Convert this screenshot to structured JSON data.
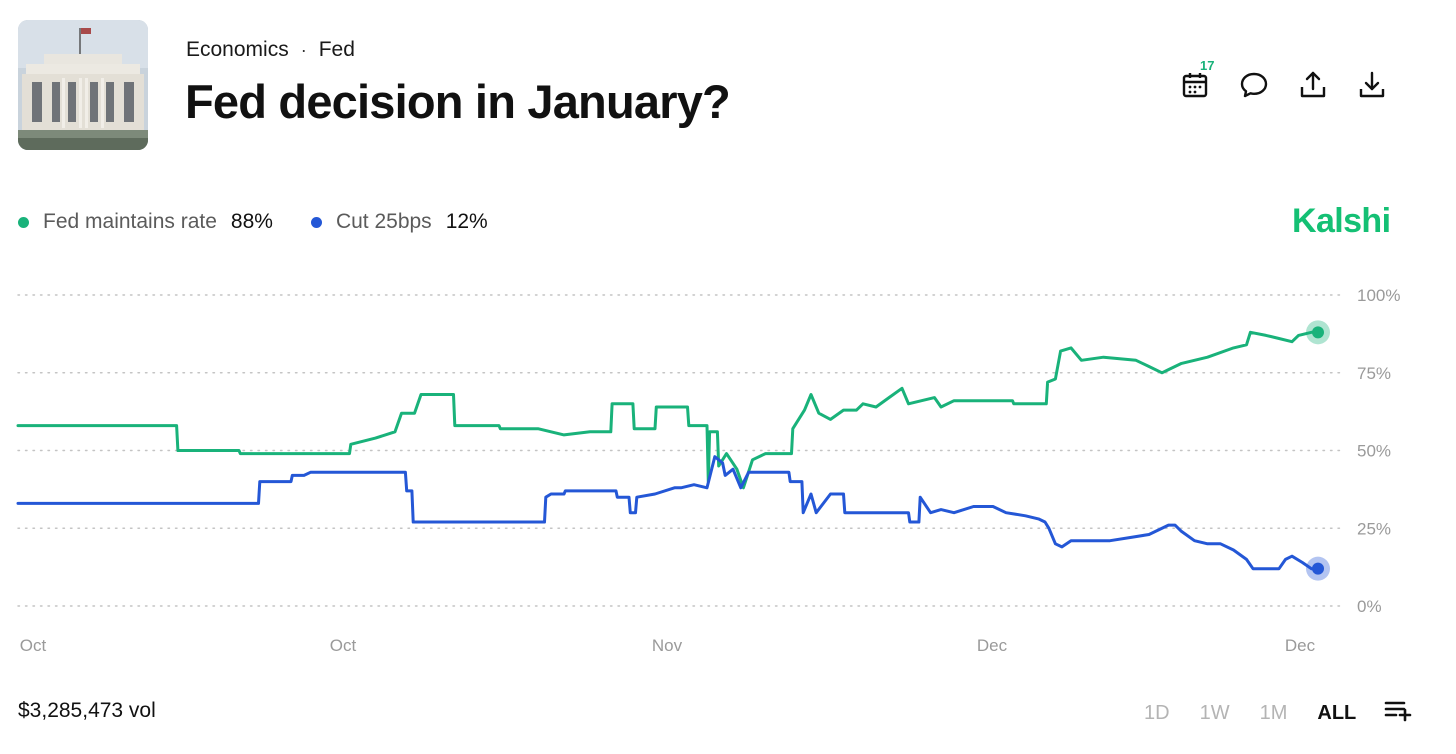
{
  "header": {
    "breadcrumb": [
      "Economics",
      "Fed"
    ],
    "breadcrumb_separator": "·",
    "title": "Fed decision in January?",
    "calendar_badge": "17"
  },
  "legend": [
    {
      "name": "Fed maintains rate",
      "value": "88%",
      "color": "#19b27a"
    },
    {
      "name": "Cut 25bps",
      "value": "12%",
      "color": "#2457d6"
    }
  ],
  "brand": "Kalshi",
  "footer": {
    "volume": "$3,285,473 vol",
    "ranges": [
      "1D",
      "1W",
      "1M",
      "ALL"
    ],
    "active_range": "ALL"
  },
  "icons": [
    "calendar-icon",
    "comment-icon",
    "share-icon",
    "download-icon",
    "add-to-list-icon"
  ],
  "chart_data": {
    "type": "line",
    "x_tick_labels": [
      "Oct",
      "Oct",
      "Nov",
      "Dec",
      "Dec"
    ],
    "y_tick_labels": [
      "100%",
      "75%",
      "50%",
      "25%",
      "0%"
    ],
    "ylim": [
      0,
      100
    ],
    "xlim": [
      0,
      100
    ],
    "grid": true,
    "line_shape": "step",
    "series": [
      {
        "name": "Fed maintains rate",
        "color": "#19b27a",
        "end_value": 88,
        "points": [
          [
            0,
            58
          ],
          [
            12.2,
            58
          ],
          [
            12.3,
            50
          ],
          [
            17,
            50
          ],
          [
            17.1,
            49
          ],
          [
            25.5,
            49
          ],
          [
            25.6,
            52
          ],
          [
            27.5,
            54
          ],
          [
            29,
            56
          ],
          [
            29.5,
            62
          ],
          [
            30.5,
            62
          ],
          [
            31,
            68
          ],
          [
            33.5,
            68
          ],
          [
            33.6,
            58
          ],
          [
            37,
            58
          ],
          [
            37.1,
            57
          ],
          [
            40,
            57
          ],
          [
            42,
            55
          ],
          [
            44,
            56
          ],
          [
            45.6,
            56
          ],
          [
            45.7,
            65
          ],
          [
            47.3,
            65
          ],
          [
            47.4,
            57
          ],
          [
            49,
            57
          ],
          [
            49.1,
            64
          ],
          [
            51.5,
            64
          ],
          [
            51.6,
            58
          ],
          [
            53,
            58
          ],
          [
            53.1,
            40
          ],
          [
            53.2,
            56
          ],
          [
            53.8,
            56
          ],
          [
            53.9,
            45
          ],
          [
            54.5,
            49
          ],
          [
            55.3,
            44
          ],
          [
            55.8,
            38
          ],
          [
            56.5,
            47
          ],
          [
            57.5,
            49
          ],
          [
            59.5,
            49
          ],
          [
            59.6,
            57
          ],
          [
            60.5,
            63
          ],
          [
            61,
            68
          ],
          [
            61.6,
            62
          ],
          [
            62.5,
            60
          ],
          [
            63.5,
            63
          ],
          [
            64.5,
            63
          ],
          [
            65,
            65
          ],
          [
            66,
            64
          ],
          [
            67,
            67
          ],
          [
            68,
            70
          ],
          [
            68.5,
            65
          ],
          [
            69.5,
            66
          ],
          [
            70.5,
            67
          ],
          [
            71,
            64
          ],
          [
            72,
            66
          ],
          [
            74,
            66
          ],
          [
            76.5,
            66
          ],
          [
            76.6,
            65
          ],
          [
            79.1,
            65
          ],
          [
            79.2,
            72
          ],
          [
            79.8,
            73
          ],
          [
            80.2,
            82
          ],
          [
            81,
            83
          ],
          [
            81.8,
            79
          ],
          [
            83.5,
            80
          ],
          [
            86,
            79
          ],
          [
            87,
            77
          ],
          [
            88,
            75
          ],
          [
            88.5,
            76
          ],
          [
            89.5,
            78
          ],
          [
            91.5,
            80
          ],
          [
            93.5,
            83
          ],
          [
            94.5,
            84
          ],
          [
            94.8,
            88
          ],
          [
            96,
            87
          ],
          [
            97,
            86
          ],
          [
            98,
            85
          ],
          [
            98.5,
            87
          ],
          [
            99.5,
            88
          ],
          [
            101,
            88
          ]
        ]
      },
      {
        "name": "Cut 25bps",
        "color": "#2457d6",
        "end_value": 12,
        "points": [
          [
            0,
            33
          ],
          [
            18.5,
            33
          ],
          [
            18.6,
            40
          ],
          [
            21,
            40
          ],
          [
            21.1,
            42
          ],
          [
            22,
            42
          ],
          [
            22.5,
            43
          ],
          [
            29.8,
            43
          ],
          [
            29.9,
            37
          ],
          [
            30.3,
            37
          ],
          [
            30.4,
            27
          ],
          [
            40.5,
            27
          ],
          [
            40.6,
            35
          ],
          [
            41,
            36
          ],
          [
            42,
            36
          ],
          [
            42.1,
            37
          ],
          [
            46,
            37
          ],
          [
            46.1,
            35
          ],
          [
            47,
            35
          ],
          [
            47.1,
            30
          ],
          [
            47.5,
            30
          ],
          [
            47.6,
            35
          ],
          [
            49,
            36
          ],
          [
            50.5,
            38
          ],
          [
            51,
            38
          ],
          [
            52,
            39
          ],
          [
            53,
            38
          ],
          [
            53.6,
            48
          ],
          [
            54.2,
            46
          ],
          [
            54.4,
            42
          ],
          [
            55,
            44
          ],
          [
            55.6,
            38
          ],
          [
            56.2,
            43
          ],
          [
            59.3,
            43
          ],
          [
            59.4,
            40
          ],
          [
            60.3,
            40
          ],
          [
            60.4,
            30
          ],
          [
            61,
            36
          ],
          [
            61.4,
            30
          ],
          [
            62.5,
            36
          ],
          [
            63.5,
            36
          ],
          [
            63.6,
            30
          ],
          [
            68.5,
            30
          ],
          [
            68.6,
            27
          ],
          [
            69.3,
            27
          ],
          [
            69.4,
            35
          ],
          [
            70.2,
            30
          ],
          [
            71,
            31
          ],
          [
            72,
            30
          ],
          [
            73.5,
            32
          ],
          [
            75,
            32
          ],
          [
            76,
            30
          ],
          [
            77.5,
            29
          ],
          [
            78.5,
            28
          ],
          [
            79,
            27
          ],
          [
            79.3,
            25
          ],
          [
            79.8,
            20
          ],
          [
            80.3,
            19
          ],
          [
            81,
            21
          ],
          [
            82.5,
            21
          ],
          [
            84,
            21
          ],
          [
            85.5,
            22
          ],
          [
            87,
            23
          ],
          [
            88.5,
            26
          ],
          [
            89,
            26
          ],
          [
            89.5,
            24
          ],
          [
            90.5,
            21
          ],
          [
            91.5,
            20
          ],
          [
            92.5,
            20
          ],
          [
            93.5,
            18
          ],
          [
            94.5,
            15
          ],
          [
            95,
            12
          ],
          [
            97,
            12
          ],
          [
            97.5,
            15
          ],
          [
            98,
            16
          ],
          [
            98.8,
            14
          ],
          [
            99.5,
            12
          ],
          [
            101,
            12
          ]
        ]
      }
    ]
  }
}
